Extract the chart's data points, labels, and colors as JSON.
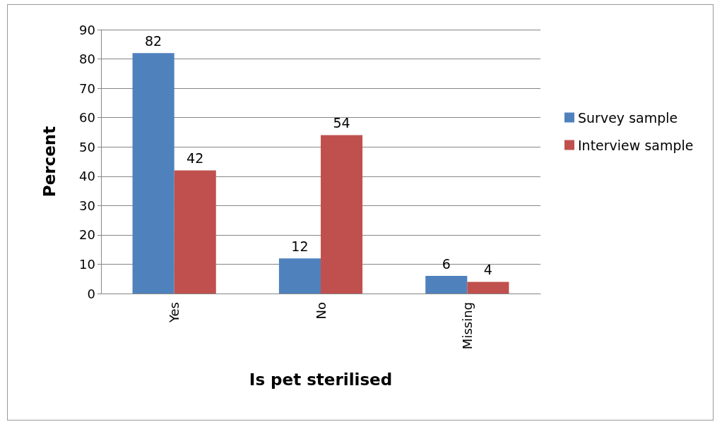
{
  "chart_data": {
    "type": "bar",
    "xlabel": "Is pet sterilised",
    "ylabel": "Percent",
    "categories": [
      "Yes",
      "No",
      "Missing"
    ],
    "series": [
      {
        "name": "Survey sample",
        "color": "#4f81bd",
        "values": [
          82,
          12,
          6
        ]
      },
      {
        "name": "Interview sample",
        "color": "#c0504d",
        "values": [
          42,
          54,
          4
        ]
      }
    ],
    "ylim": [
      0,
      90
    ],
    "yticks": [
      0,
      10,
      20,
      30,
      40,
      50,
      60,
      70,
      80,
      90
    ],
    "grid": "y",
    "legend": "right",
    "data_labels": true
  }
}
